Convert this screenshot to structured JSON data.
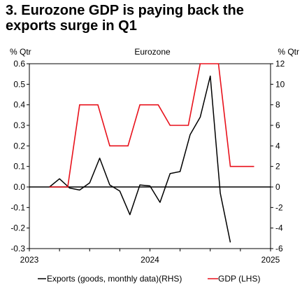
{
  "title_line1": "3. Eurozone GDP is paying back the",
  "title_line2": "exports surge in Q1",
  "chart_data": {
    "type": "line",
    "subtitle": "Eurozone",
    "left_unit": "% Qtr",
    "right_unit": "% Qtr",
    "left_axis": {
      "min": -0.3,
      "max": 0.6,
      "ticks": [
        "0.6",
        "0.5",
        "0.4",
        "0.3",
        "0.2",
        "0.1",
        "0.0",
        "-0.1",
        "-0.2",
        "-0.3"
      ]
    },
    "right_axis": {
      "min": -6,
      "max": 12,
      "ticks": [
        "12",
        "10",
        "8",
        "6",
        "4",
        "2",
        "0",
        "-2",
        "-4",
        "-6"
      ]
    },
    "x_axis": {
      "start": "2023-01",
      "end": "2025-01",
      "labels": [
        {
          "text": "2023",
          "date": "2023-01"
        },
        {
          "text": "2024",
          "date": "2024-01"
        },
        {
          "text": "2025",
          "date": "2025-01"
        }
      ]
    },
    "series": [
      {
        "name": "Exports (goods, monthly data)(RHS)",
        "axis": "right",
        "color": "#000000",
        "points": [
          [
            "2023-03",
            0.0
          ],
          [
            "2023-04",
            0.8
          ],
          [
            "2023-05",
            -0.1
          ],
          [
            "2023-06",
            -0.3
          ],
          [
            "2023-07",
            0.4
          ],
          [
            "2023-08",
            2.8
          ],
          [
            "2023-09",
            0.2
          ],
          [
            "2023-10",
            -0.4
          ],
          [
            "2023-11",
            -2.7
          ],
          [
            "2023-12",
            0.2
          ],
          [
            "2024-01",
            0.1
          ],
          [
            "2024-02",
            -1.5
          ],
          [
            "2024-03",
            1.3
          ],
          [
            "2024-04",
            1.5
          ],
          [
            "2024-05",
            5.1
          ],
          [
            "2024-06",
            6.8
          ],
          [
            "2024-07",
            10.8
          ],
          [
            "2024-08",
            -0.6
          ],
          [
            "2024-09",
            -5.4
          ]
        ]
      },
      {
        "name": "GDP (LHS)",
        "axis": "left",
        "color": "#e8111b",
        "quarters": [
          [
            "2023-03",
            0.0
          ],
          [
            "2023-06",
            0.4
          ],
          [
            "2023-09",
            0.2
          ],
          [
            "2023-12",
            0.4
          ],
          [
            "2024-03",
            0.3
          ],
          [
            "2024-06",
            0.6
          ],
          [
            "2024-09",
            0.1
          ]
        ]
      }
    ],
    "legend": [
      "Exports (goods, monthly data)(RHS)",
      "GDP (LHS)"
    ],
    "legend_position": "bottom"
  }
}
